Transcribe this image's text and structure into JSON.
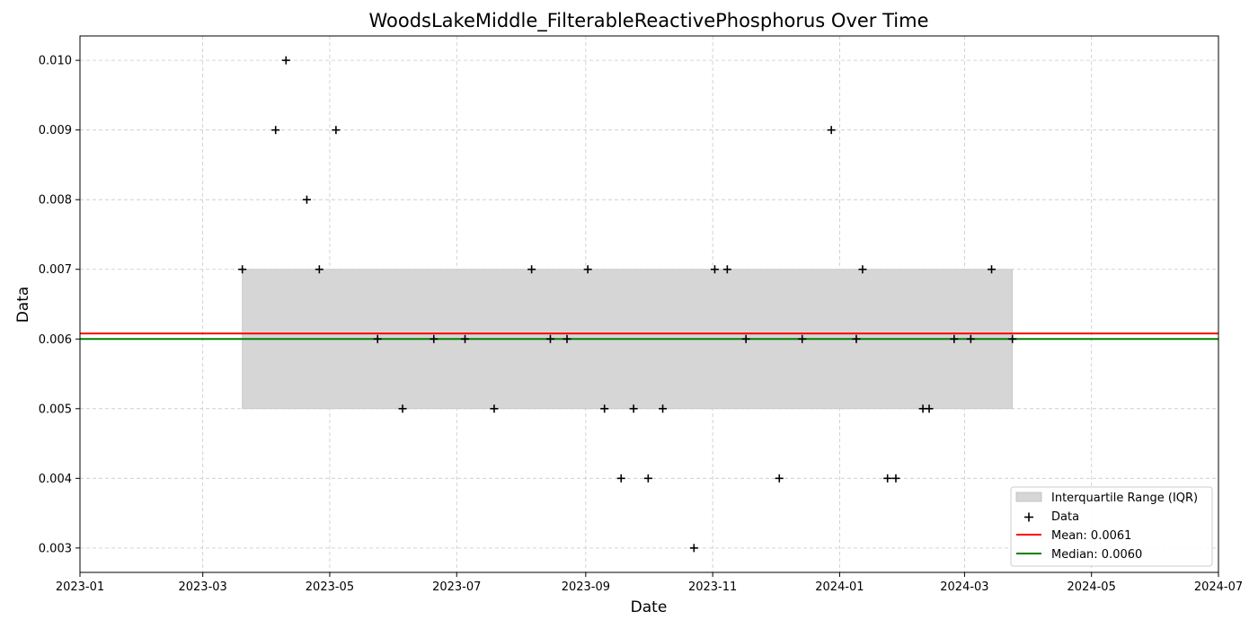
{
  "chart_data": {
    "type": "scatter",
    "title": "WoodsLakeMiddle_FilterableReactivePhosphorus Over Time",
    "xlabel": "Date",
    "ylabel": "Data",
    "x_axis_type": "date",
    "xlim": [
      "2023-01-01",
      "2024-07-01"
    ],
    "ylim": [
      0.00265,
      0.01035
    ],
    "x_ticks": [
      "2023-01-01",
      "2023-03-01",
      "2023-05-01",
      "2023-07-01",
      "2023-09-01",
      "2023-11-01",
      "2024-01-01",
      "2024-03-01",
      "2024-05-01",
      "2024-07-01"
    ],
    "x_tick_labels": [
      "2023-01",
      "2023-03",
      "2023-05",
      "2023-07",
      "2023-09",
      "2023-11",
      "2024-01",
      "2024-03",
      "2024-05",
      "2024-07"
    ],
    "y_ticks": [
      0.003,
      0.004,
      0.005,
      0.006,
      0.007,
      0.008,
      0.009,
      0.01
    ],
    "y_tick_labels": [
      "0.003",
      "0.004",
      "0.005",
      "0.006",
      "0.007",
      "0.008",
      "0.009",
      "0.010"
    ],
    "grid": true,
    "legend_position": "bottom-right",
    "colors": {
      "data": "#000000",
      "mean": "#ff0000",
      "median": "#008000",
      "iqr": "#d6d6d6",
      "grid": "#c8c8c8"
    },
    "series": [
      {
        "name": "Data",
        "marker": "plus",
        "points": [
          {
            "x": "2023-03-20",
            "y": 0.007
          },
          {
            "x": "2023-04-05",
            "y": 0.009
          },
          {
            "x": "2023-04-10",
            "y": 0.01
          },
          {
            "x": "2023-04-20",
            "y": 0.008
          },
          {
            "x": "2023-04-26",
            "y": 0.007
          },
          {
            "x": "2023-05-04",
            "y": 0.009
          },
          {
            "x": "2023-05-24",
            "y": 0.006
          },
          {
            "x": "2023-06-05",
            "y": 0.005
          },
          {
            "x": "2023-06-20",
            "y": 0.006
          },
          {
            "x": "2023-07-05",
            "y": 0.006
          },
          {
            "x": "2023-07-19",
            "y": 0.005
          },
          {
            "x": "2023-08-06",
            "y": 0.007
          },
          {
            "x": "2023-08-15",
            "y": 0.006
          },
          {
            "x": "2023-08-23",
            "y": 0.006
          },
          {
            "x": "2023-09-02",
            "y": 0.007
          },
          {
            "x": "2023-09-10",
            "y": 0.005
          },
          {
            "x": "2023-09-18",
            "y": 0.004
          },
          {
            "x": "2023-09-24",
            "y": 0.005
          },
          {
            "x": "2023-10-01",
            "y": 0.004
          },
          {
            "x": "2023-10-08",
            "y": 0.005
          },
          {
            "x": "2023-10-23",
            "y": 0.003
          },
          {
            "x": "2023-11-02",
            "y": 0.007
          },
          {
            "x": "2023-11-08",
            "y": 0.007
          },
          {
            "x": "2023-11-17",
            "y": 0.006
          },
          {
            "x": "2023-12-03",
            "y": 0.004
          },
          {
            "x": "2023-12-14",
            "y": 0.006
          },
          {
            "x": "2023-12-28",
            "y": 0.009
          },
          {
            "x": "2024-01-09",
            "y": 0.006
          },
          {
            "x": "2024-01-12",
            "y": 0.007
          },
          {
            "x": "2024-01-24",
            "y": 0.004
          },
          {
            "x": "2024-01-28",
            "y": 0.004
          },
          {
            "x": "2024-02-10",
            "y": 0.005
          },
          {
            "x": "2024-02-13",
            "y": 0.005
          },
          {
            "x": "2024-02-25",
            "y": 0.006
          },
          {
            "x": "2024-03-04",
            "y": 0.006
          },
          {
            "x": "2024-03-14",
            "y": 0.007
          },
          {
            "x": "2024-03-24",
            "y": 0.006
          }
        ]
      }
    ],
    "iqr": {
      "x_start": "2023-03-20",
      "x_end": "2024-03-24",
      "low": 0.005,
      "high": 0.007
    },
    "mean": 0.00608,
    "median": 0.006,
    "legend": [
      {
        "key": "iqr",
        "label": "Interquartile Range (IQR)",
        "symbol": "patch"
      },
      {
        "key": "data",
        "label": "Data",
        "symbol": "plus"
      },
      {
        "key": "mean",
        "label": "Mean: 0.0061",
        "symbol": "line"
      },
      {
        "key": "median",
        "label": "Median: 0.0060",
        "symbol": "line"
      }
    ]
  }
}
